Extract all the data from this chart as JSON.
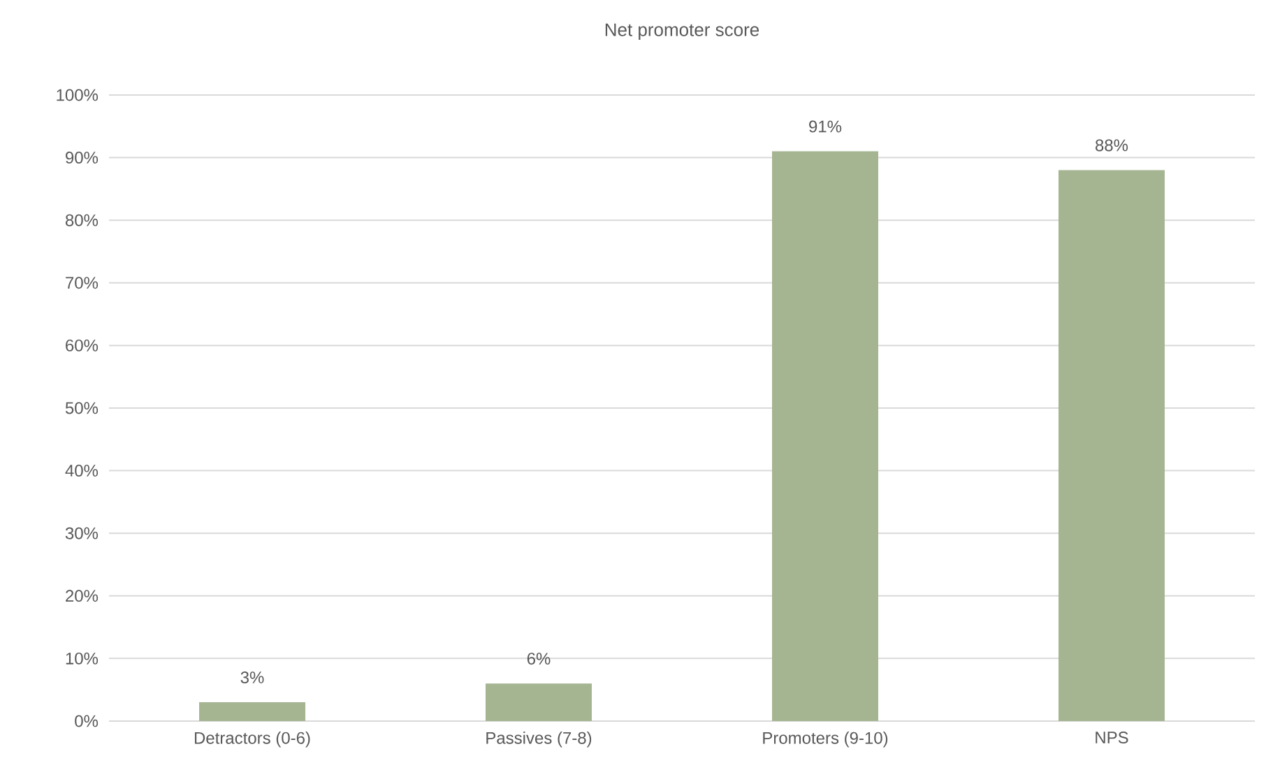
{
  "chart_data": {
    "type": "bar",
    "title": "Net promoter score",
    "categories": [
      "Detractors (0-6)",
      "Passives (7-8)",
      "Promoters (9-10)",
      "NPS"
    ],
    "values": [
      3,
      6,
      91,
      88
    ],
    "value_labels": [
      "3%",
      "6%",
      "91%",
      "88%"
    ],
    "color": "#a5b592",
    "ylim": [
      0,
      100
    ],
    "yticks": [
      {
        "value": 0,
        "label": "0%"
      },
      {
        "value": 10,
        "label": "10%"
      },
      {
        "value": 20,
        "label": "20%"
      },
      {
        "value": 30,
        "label": "30%"
      },
      {
        "value": 40,
        "label": "40%"
      },
      {
        "value": 50,
        "label": "50%"
      },
      {
        "value": 60,
        "label": "60%"
      },
      {
        "value": 70,
        "label": "70%"
      },
      {
        "value": 80,
        "label": "80%"
      },
      {
        "value": 90,
        "label": "90%"
      },
      {
        "value": 100,
        "label": "100%"
      }
    ],
    "grid": "y"
  }
}
